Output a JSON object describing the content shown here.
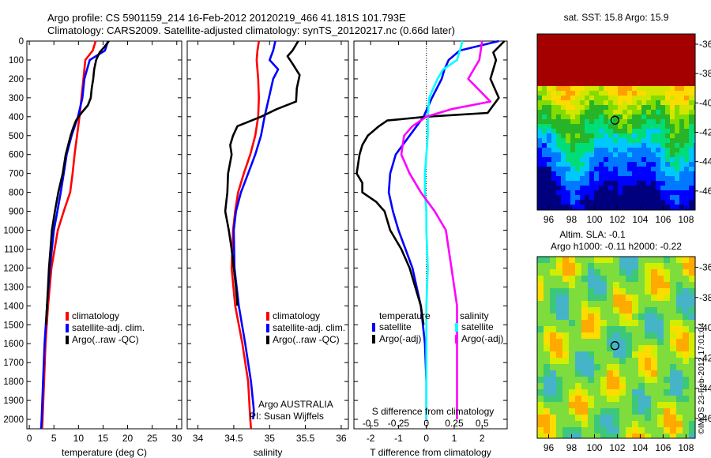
{
  "header": {
    "line1": "Argo profile: CS 5901159_214 16-Feb-2012 20120219_466 41.181S 101.793E",
    "line2": "Climatology: CARS2009. Satellite-adjusted climatology: synTS_20120217.nc (0.66d later)"
  },
  "colors": {
    "climatology": "#ff0000",
    "satellite": "#0000ff",
    "argo": "#000000",
    "satellite_s": "#00ffff",
    "argo_s": "#ff00ff"
  },
  "chart_data": [
    {
      "type": "line",
      "xlabel": "temperature (deg C)",
      "xlim": [
        -0.5,
        31
      ],
      "xticks": [
        "0",
        "5",
        "10",
        "15",
        "20",
        "25",
        "30"
      ],
      "yticks": [
        "0",
        "100",
        "200",
        "300",
        "400",
        "500",
        "600",
        "700",
        "800",
        "900",
        "1000",
        "1100",
        "1200",
        "1300",
        "1400",
        "1500",
        "1600",
        "1700",
        "1800",
        "1900",
        "2000"
      ],
      "ylim": [
        2050,
        0
      ],
      "legend": [
        "climatology",
        "satellite-adj. clim.",
        "Argo(..raw -QC)"
      ],
      "series": [
        {
          "name": "climatology",
          "color": "#ff0000",
          "depth": [
            0,
            50,
            100,
            200,
            300,
            400,
            500,
            600,
            700,
            800,
            900,
            1000,
            1200,
            1400,
            1600,
            1800,
            2000,
            2050
          ],
          "values": [
            13.5,
            12.9,
            11.4,
            11.0,
            10.6,
            10.2,
            9.7,
            9.2,
            8.8,
            8.3,
            7.0,
            5.8,
            4.5,
            3.8,
            3.3,
            3.0,
            2.7,
            2.6
          ]
        },
        {
          "name": "satellite-adj. clim.",
          "color": "#0000ff",
          "depth": [
            0,
            50,
            100,
            200,
            300,
            400,
            500,
            600,
            700,
            800,
            900,
            1000,
            1200,
            1400,
            1600,
            1800,
            2000,
            2050
          ],
          "values": [
            16.0,
            15.4,
            12.3,
            11.2,
            10.8,
            9.9,
            8.6,
            7.6,
            7.0,
            6.4,
            5.7,
            5.0,
            4.2,
            3.6,
            3.1,
            2.8,
            2.5,
            2.4
          ]
        },
        {
          "name": "Argo(..raw -QC)",
          "color": "#000000",
          "depth": [
            0,
            30,
            60,
            100,
            150,
            200,
            250,
            300,
            340,
            380,
            420,
            460,
            500,
            600,
            700,
            800,
            900,
            1000,
            1100,
            1200,
            1300,
            1400,
            1500
          ],
          "values": [
            16.2,
            15.3,
            14.3,
            13.6,
            13.2,
            13.0,
            12.7,
            12.5,
            11.9,
            10.6,
            9.5,
            8.9,
            8.4,
            7.4,
            6.8,
            5.9,
            5.2,
            4.6,
            4.3,
            4.0,
            3.8,
            3.6,
            3.4
          ]
        }
      ]
    },
    {
      "type": "line",
      "xlabel": "salinity",
      "xlim": [
        33.85,
        36.1
      ],
      "xticks": [
        "34",
        "34.5",
        "35",
        "35.5",
        "36"
      ],
      "ylim": [
        2050,
        0
      ],
      "legend": [
        "climatology",
        "satellite-adj. clim.",
        "Argo(..raw -QC)"
      ],
      "annotations": [
        "Argo AUSTRALIA",
        "PI: Susan Wijffels"
      ],
      "series": [
        {
          "name": "climatology",
          "color": "#ff0000",
          "depth": [
            0,
            50,
            100,
            200,
            300,
            400,
            500,
            600,
            700,
            800,
            900,
            1000,
            1200,
            1400,
            1600,
            1800,
            2000,
            2050
          ],
          "values": [
            34.85,
            34.83,
            34.82,
            34.84,
            34.85,
            34.84,
            34.8,
            34.73,
            34.64,
            34.56,
            34.52,
            34.49,
            34.47,
            34.52,
            34.62,
            34.7,
            34.73,
            34.74
          ]
        },
        {
          "name": "satellite-adj. clim.",
          "color": "#0000ff",
          "depth": [
            0,
            50,
            100,
            150,
            200,
            300,
            400,
            500,
            600,
            700,
            800,
            900,
            1000,
            1200,
            1400,
            1600,
            1800,
            1950,
            2000
          ],
          "values": [
            35.08,
            35.05,
            35.0,
            35.12,
            35.05,
            34.99,
            34.93,
            34.88,
            34.8,
            34.7,
            34.6,
            34.53,
            34.5,
            34.51,
            34.57,
            34.66,
            34.74,
            34.78,
            34.77
          ]
        },
        {
          "name": "Argo(..raw -QC)",
          "color": "#000000",
          "depth": [
            0,
            50,
            80,
            120,
            180,
            250,
            320,
            360,
            400,
            450,
            500,
            550,
            600,
            700,
            800,
            900,
            1000,
            1100,
            1200,
            1300,
            1400
          ],
          "values": [
            35.4,
            35.32,
            35.25,
            35.32,
            35.42,
            35.38,
            35.37,
            35.1,
            34.88,
            34.55,
            34.49,
            34.45,
            34.47,
            34.42,
            34.41,
            34.38,
            34.43,
            34.47,
            34.5,
            34.53,
            34.55
          ]
        }
      ]
    },
    {
      "type": "line",
      "xlabel": "T difference from climatology",
      "xlim": [
        -2.6,
        2.9
      ],
      "xticks": [
        "-2",
        "-1",
        "0",
        "1",
        "2"
      ],
      "top_axis_label": "S difference from climatology",
      "top_ticks": [
        "-0.5",
        "-0.25",
        "0",
        "0.25",
        "0.5"
      ],
      "ylim": [
        2050,
        0
      ],
      "legend_temperature": {
        "title": "temperature",
        "items": [
          "satellite",
          "Argo(-adj)"
        ]
      },
      "legend_salinity": {
        "title": "salinity",
        "items": [
          "satellite",
          "Argo(-adj)"
        ]
      },
      "series": [
        {
          "name": "satellite",
          "color": "#0000ff",
          "depth": [
            0,
            50,
            100,
            150,
            200,
            300,
            350,
            400,
            500,
            600,
            700,
            800,
            900,
            1000,
            1100,
            1200,
            1300,
            1400,
            1600,
            1800,
            2000
          ],
          "values": [
            2.6,
            1.2,
            0.8,
            0.65,
            0.55,
            0.2,
            0.05,
            -0.1,
            -0.6,
            -1.1,
            -1.3,
            -1.35,
            -1.2,
            -1.0,
            -0.75,
            -0.5,
            -0.35,
            -0.2,
            -0.05,
            0.0,
            0.0
          ]
        },
        {
          "name": "Argo(-adj)",
          "color": "#000000",
          "depth": [
            0,
            60,
            100,
            200,
            300,
            380,
            400,
            420,
            450,
            500,
            550,
            600,
            700,
            750,
            800,
            850,
            900,
            1000,
            1100,
            1200,
            1300,
            1400,
            1500
          ],
          "values": [
            2.8,
            2.4,
            2.5,
            2.3,
            2.6,
            2.2,
            0.0,
            -1.4,
            -1.7,
            -2.1,
            -2.3,
            -2.4,
            -2.5,
            -2.3,
            -2.3,
            -1.8,
            -1.5,
            -1.3,
            -0.9,
            -0.6,
            -0.4,
            -0.2,
            -0.1
          ]
        },
        {
          "name": "salinity satellite",
          "color": "#00ffff",
          "depth": [
            0,
            100,
            150,
            200,
            300,
            400,
            500,
            600,
            700,
            800,
            900,
            1000,
            1200,
            1400,
            1600,
            1800,
            2000
          ],
          "values": [
            1.3,
            1.1,
            0.6,
            0.4,
            0.1,
            0.05,
            0.05,
            0.0,
            -0.05,
            -0.05,
            0.0,
            0.0,
            0.05,
            0.0,
            0.0,
            0.0,
            0.0
          ]
        },
        {
          "name": "salinity Argo(-adj)",
          "color": "#ff00ff",
          "depth": [
            0,
            100,
            200,
            320,
            360,
            400,
            450,
            500,
            600,
            700,
            800,
            900,
            1000,
            1200,
            1400,
            1600,
            1800,
            2000
          ],
          "values": [
            2.0,
            1.9,
            1.5,
            2.3,
            0.9,
            0.0,
            -0.5,
            -0.8,
            -0.9,
            -0.6,
            -0.2,
            0.3,
            0.7,
            0.9,
            1.1,
            1.1,
            1.1,
            1.1
          ]
        }
      ]
    },
    {
      "type": "heatmap",
      "title": "sat. SST: 15.8 Argo: 15.9",
      "xlim": [
        95,
        108.8
      ],
      "ylim": [
        -47.3,
        -35.3
      ],
      "xticks": [
        "96",
        "98",
        "100",
        "102",
        "104",
        "106",
        "108"
      ],
      "yticks": [
        "-36",
        "-38",
        "-40",
        "-42",
        "-44",
        "-46"
      ],
      "marker": {
        "lon": 101.79,
        "lat": -41.18
      }
    },
    {
      "type": "heatmap",
      "title_line1": "Altim. SLA: -0.1",
      "title_line2": "Argo h1000: -0.11 h2000: -0.22",
      "xlim": [
        95,
        108.8
      ],
      "ylim": [
        -47.3,
        -35.3
      ],
      "xticks": [
        "96",
        "98",
        "100",
        "102",
        "104",
        "106",
        "108"
      ],
      "yticks": [
        "-36",
        "-38",
        "-40",
        "-42",
        "-44",
        "-46"
      ],
      "marker": {
        "lon": 101.79,
        "lat": -41.18
      }
    }
  ],
  "footer": {
    "credit": "©IMOS 23-Feb-2012 17:01:04"
  }
}
